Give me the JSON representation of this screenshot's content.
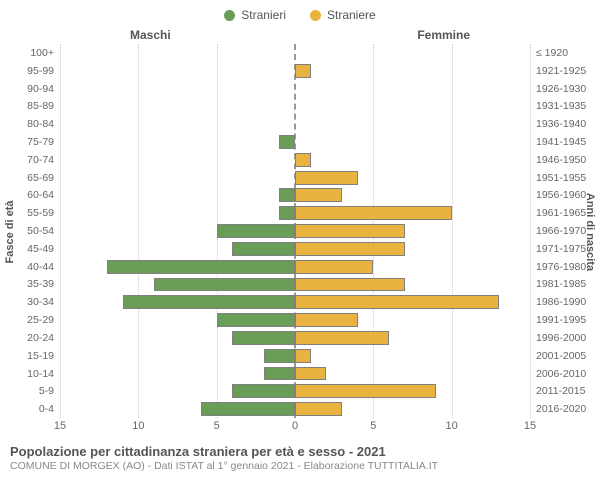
{
  "legend": {
    "male": {
      "label": "Stranieri",
      "color": "#6a9e58"
    },
    "female": {
      "label": "Straniere",
      "color": "#e8b33e"
    }
  },
  "headers": {
    "male": "Maschi",
    "female": "Femmine",
    "left_axis": "Fasce di età",
    "right_axis": "Anni di nascita"
  },
  "chart": {
    "type": "population-pyramid",
    "xlim": 15,
    "xticks_left": [
      15,
      10,
      5,
      0
    ],
    "xticks_right": [
      0,
      5,
      10,
      15
    ],
    "grid_steps": [
      5,
      10,
      15
    ],
    "bar_border": "#808080",
    "rows": [
      {
        "age": "100+",
        "birth": "≤ 1920",
        "m": 0,
        "f": 0
      },
      {
        "age": "95-99",
        "birth": "1921-1925",
        "m": 0,
        "f": 1
      },
      {
        "age": "90-94",
        "birth": "1926-1930",
        "m": 0,
        "f": 0
      },
      {
        "age": "85-89",
        "birth": "1931-1935",
        "m": 0,
        "f": 0
      },
      {
        "age": "80-84",
        "birth": "1936-1940",
        "m": 0,
        "f": 0
      },
      {
        "age": "75-79",
        "birth": "1941-1945",
        "m": 1,
        "f": 0
      },
      {
        "age": "70-74",
        "birth": "1946-1950",
        "m": 0,
        "f": 1
      },
      {
        "age": "65-69",
        "birth": "1951-1955",
        "m": 0,
        "f": 4
      },
      {
        "age": "60-64",
        "birth": "1956-1960",
        "m": 1,
        "f": 3
      },
      {
        "age": "55-59",
        "birth": "1961-1965",
        "m": 1,
        "f": 10
      },
      {
        "age": "50-54",
        "birth": "1966-1970",
        "m": 5,
        "f": 7
      },
      {
        "age": "45-49",
        "birth": "1971-1975",
        "m": 4,
        "f": 7
      },
      {
        "age": "40-44",
        "birth": "1976-1980",
        "m": 12,
        "f": 5
      },
      {
        "age": "35-39",
        "birth": "1981-1985",
        "m": 9,
        "f": 7
      },
      {
        "age": "30-34",
        "birth": "1986-1990",
        "m": 11,
        "f": 13
      },
      {
        "age": "25-29",
        "birth": "1991-1995",
        "m": 5,
        "f": 4
      },
      {
        "age": "20-24",
        "birth": "1996-2000",
        "m": 4,
        "f": 6
      },
      {
        "age": "15-19",
        "birth": "2001-2005",
        "m": 2,
        "f": 1
      },
      {
        "age": "10-14",
        "birth": "2006-2010",
        "m": 2,
        "f": 2
      },
      {
        "age": "5-9",
        "birth": "2011-2015",
        "m": 4,
        "f": 9
      },
      {
        "age": "0-4",
        "birth": "2016-2020",
        "m": 6,
        "f": 3
      }
    ]
  },
  "footer": {
    "title": "Popolazione per cittadinanza straniera per età e sesso - 2021",
    "subtitle": "COMUNE DI MORGEX (AO) - Dati ISTAT al 1° gennaio 2021 - Elaborazione TUTTITALIA.IT"
  }
}
